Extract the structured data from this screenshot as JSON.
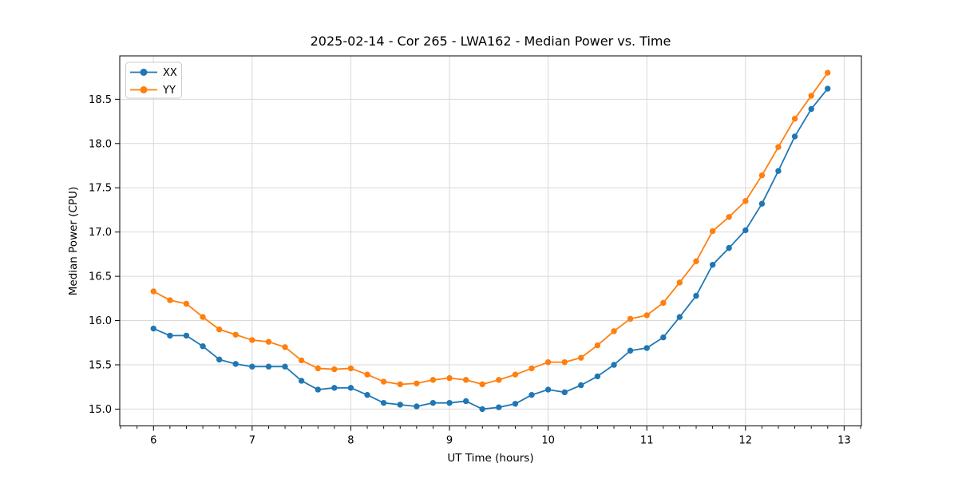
{
  "figure": {
    "background": "#ffffff"
  },
  "chart_data": {
    "type": "line",
    "title": "2025-02-14 - Cor 265 - LWA162 - Median Power vs. Time",
    "xlabel": "UT Time (hours)",
    "ylabel": "Median Power (CPU)",
    "xlim": [
      5.658,
      13.175
    ],
    "ylim": [
      14.81,
      18.99
    ],
    "xticks": [
      6,
      7,
      8,
      9,
      10,
      11,
      12,
      13
    ],
    "yticks": [
      15.0,
      15.5,
      16.0,
      16.5,
      17.0,
      17.5,
      18.0,
      18.5
    ],
    "x_minor_step": 0.16667,
    "grid": true,
    "grid_color": "#d9d9d9",
    "spine_color": "#000000",
    "legend_position": "upper-left",
    "x": [
      6.0,
      6.167,
      6.333,
      6.5,
      6.667,
      6.833,
      7.0,
      7.167,
      7.333,
      7.5,
      7.667,
      7.833,
      8.0,
      8.167,
      8.333,
      8.5,
      8.667,
      8.833,
      9.0,
      9.167,
      9.333,
      9.5,
      9.667,
      9.833,
      10.0,
      10.167,
      10.333,
      10.5,
      10.667,
      10.833,
      11.0,
      11.167,
      11.333,
      11.5,
      11.667,
      11.833,
      12.0,
      12.167,
      12.333,
      12.5,
      12.667,
      12.833
    ],
    "series": [
      {
        "name": "XX",
        "color": "#1f77b4",
        "marker": "circle",
        "values": [
          15.91,
          15.83,
          15.83,
          15.71,
          15.56,
          15.51,
          15.48,
          15.48,
          15.48,
          15.32,
          15.22,
          15.24,
          15.24,
          15.16,
          15.07,
          15.05,
          15.03,
          15.07,
          15.07,
          15.09,
          15.0,
          15.02,
          15.06,
          15.16,
          15.22,
          15.19,
          15.27,
          15.37,
          15.5,
          15.66,
          15.69,
          15.81,
          16.04,
          16.28,
          16.63,
          16.82,
          17.02,
          17.32,
          17.69,
          18.08,
          18.39,
          18.62
        ]
      },
      {
        "name": "YY",
        "color": "#ff7f0e",
        "marker": "circle",
        "values": [
          16.33,
          16.23,
          16.19,
          16.04,
          15.9,
          15.84,
          15.78,
          15.76,
          15.7,
          15.55,
          15.46,
          15.45,
          15.46,
          15.39,
          15.31,
          15.28,
          15.29,
          15.33,
          15.35,
          15.33,
          15.28,
          15.33,
          15.39,
          15.46,
          15.53,
          15.53,
          15.58,
          15.72,
          15.88,
          16.02,
          16.06,
          16.2,
          16.43,
          16.67,
          17.01,
          17.17,
          17.35,
          17.64,
          17.96,
          18.28,
          18.54,
          18.8
        ]
      }
    ]
  }
}
